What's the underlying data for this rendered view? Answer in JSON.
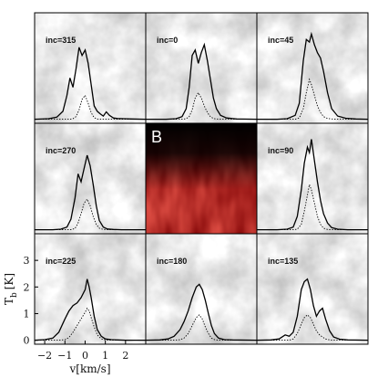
{
  "chart_data": {
    "type": "line",
    "description_free": true,
    "xlabel": "v[km/s]",
    "ylabel": "T_b [K]",
    "ylabel_main": "T",
    "ylabel_sub": "b",
    "ylabel_unit": "[K]",
    "xlim": [
      -2.5,
      3.0
    ],
    "ylim": [
      -0.15,
      4.0
    ],
    "xticks": [
      -2,
      -1,
      0,
      1,
      2
    ],
    "yticks": [
      0,
      1,
      2,
      3
    ],
    "center_panel_label": "B",
    "panels": [
      {
        "label": "inc=315",
        "x": [
          -2.5,
          -1.8,
          -1.4,
          -1.1,
          -0.9,
          -0.75,
          -0.6,
          -0.45,
          -0.3,
          -0.15,
          0,
          0.15,
          0.3,
          0.45,
          0.6,
          0.75,
          0.9,
          1.05,
          1.2,
          1.4,
          1.6,
          1.9,
          2.3,
          3.0
        ],
        "y": [
          0,
          0.02,
          0.08,
          0.3,
          0.9,
          1.55,
          1.2,
          1.9,
          2.7,
          2.4,
          2.6,
          2.1,
          1.3,
          0.5,
          0.3,
          0.2,
          0.12,
          0.28,
          0.15,
          0.05,
          0.03,
          0.02,
          0.01,
          0
        ],
        "dotted": [
          0,
          0,
          0,
          0,
          0,
          0,
          0.02,
          0.1,
          0.35,
          0.75,
          0.9,
          0.6,
          0.25,
          0.06,
          0.01,
          0,
          0,
          0,
          0,
          0,
          0,
          0,
          0,
          0
        ]
      },
      {
        "label": "inc=0",
        "x": [
          -2.5,
          -1.5,
          -1.0,
          -0.7,
          -0.5,
          -0.35,
          -0.2,
          -0.05,
          0.1,
          0.25,
          0.4,
          0.55,
          0.7,
          0.85,
          1.0,
          1.2,
          1.5,
          2.0,
          3.0
        ],
        "y": [
          0,
          0,
          0.02,
          0.1,
          0.4,
          1.2,
          2.4,
          2.6,
          2.1,
          2.5,
          2.8,
          2.2,
          1.5,
          0.8,
          0.4,
          0.15,
          0.05,
          0.01,
          0
        ],
        "dotted": [
          0,
          0,
          0,
          0,
          0.02,
          0.1,
          0.35,
          0.8,
          1.0,
          0.8,
          0.5,
          0.25,
          0.1,
          0.03,
          0.01,
          0,
          0,
          0,
          0
        ]
      },
      {
        "label": "inc=45",
        "x": [
          -2.5,
          -1.5,
          -1.0,
          -0.6,
          -0.4,
          -0.2,
          -0.05,
          0.1,
          0.2,
          0.35,
          0.5,
          0.65,
          0.8,
          1.0,
          1.2,
          1.5,
          1.9,
          2.4,
          3.0
        ],
        "y": [
          0,
          0,
          0.02,
          0.15,
          0.6,
          2.2,
          3.0,
          2.9,
          3.2,
          2.8,
          2.5,
          2.3,
          1.8,
          1.0,
          0.4,
          0.12,
          0.04,
          0.01,
          0
        ],
        "dotted": [
          0,
          0,
          0,
          0,
          0.05,
          0.4,
          1.0,
          1.5,
          1.3,
          0.9,
          0.5,
          0.25,
          0.1,
          0.03,
          0.01,
          0,
          0,
          0,
          0
        ]
      },
      {
        "label": "inc=270",
        "x": [
          -2.5,
          -1.6,
          -1.2,
          -0.9,
          -0.7,
          -0.5,
          -0.35,
          -0.2,
          -0.05,
          0.1,
          0.25,
          0.4,
          0.55,
          0.7,
          0.9,
          1.1,
          1.4,
          1.8,
          3.0
        ],
        "y": [
          0,
          0,
          0.02,
          0.1,
          0.4,
          1.2,
          2.1,
          1.8,
          2.3,
          2.8,
          2.4,
          1.7,
          0.9,
          0.35,
          0.1,
          0.03,
          0.01,
          0,
          0
        ],
        "dotted": [
          0,
          0,
          0,
          0,
          0,
          0.05,
          0.25,
          0.6,
          1.0,
          1.15,
          0.9,
          0.5,
          0.2,
          0.06,
          0.01,
          0,
          0,
          0,
          0
        ]
      },
      {
        "label": "inc=90",
        "x": [
          -2.5,
          -1.5,
          -1.0,
          -0.7,
          -0.5,
          -0.3,
          -0.15,
          0,
          0.1,
          0.2,
          0.35,
          0.5,
          0.65,
          0.8,
          1.0,
          1.2,
          1.5,
          2.0,
          3.0
        ],
        "y": [
          0,
          0,
          0.02,
          0.1,
          0.5,
          1.5,
          2.5,
          3.1,
          2.9,
          3.4,
          2.6,
          1.8,
          1.1,
          0.6,
          0.25,
          0.08,
          0.02,
          0,
          0
        ],
        "dotted": [
          0,
          0,
          0,
          0,
          0.02,
          0.2,
          0.7,
          1.3,
          1.7,
          1.5,
          1.0,
          0.5,
          0.2,
          0.06,
          0.01,
          0,
          0,
          0,
          0
        ]
      },
      {
        "label": "inc=225",
        "x": [
          -2.5,
          -2.0,
          -1.6,
          -1.3,
          -1.0,
          -0.8,
          -0.6,
          -0.4,
          -0.2,
          0,
          0.1,
          0.2,
          0.3,
          0.45,
          0.6,
          0.8,
          1.0,
          1.3,
          1.6,
          2.0,
          3.0
        ],
        "y": [
          0,
          0.02,
          0.08,
          0.3,
          0.8,
          1.1,
          1.3,
          1.4,
          1.6,
          1.9,
          2.3,
          2.0,
          1.6,
          0.9,
          0.4,
          0.15,
          0.05,
          0.02,
          0.01,
          0,
          0
        ],
        "dotted": [
          0,
          0,
          0,
          0,
          0.02,
          0.1,
          0.3,
          0.55,
          0.8,
          1.05,
          1.2,
          1.1,
          0.85,
          0.5,
          0.2,
          0.05,
          0.01,
          0,
          0,
          0,
          0
        ]
      },
      {
        "label": "inc=180",
        "x": [
          -2.5,
          -1.8,
          -1.4,
          -1.1,
          -0.8,
          -0.6,
          -0.4,
          -0.2,
          0,
          0.15,
          0.3,
          0.45,
          0.6,
          0.75,
          0.9,
          1.1,
          1.4,
          1.8,
          3.0
        ],
        "y": [
          0,
          0.01,
          0.05,
          0.15,
          0.4,
          0.7,
          1.1,
          1.6,
          2.0,
          2.1,
          1.9,
          1.5,
          1.0,
          0.55,
          0.25,
          0.08,
          0.02,
          0.01,
          0
        ],
        "dotted": [
          0,
          0,
          0,
          0,
          0.02,
          0.08,
          0.25,
          0.55,
          0.85,
          0.95,
          0.8,
          0.5,
          0.25,
          0.08,
          0.02,
          0,
          0,
          0,
          0
        ]
      },
      {
        "label": "inc=135",
        "x": [
          -2.5,
          -1.8,
          -1.4,
          -1.1,
          -0.9,
          -0.7,
          -0.5,
          -0.3,
          -0.15,
          0,
          0.15,
          0.3,
          0.45,
          0.6,
          0.75,
          0.9,
          1.1,
          1.3,
          1.6,
          2.0,
          3.0
        ],
        "y": [
          0,
          0.01,
          0.05,
          0.2,
          0.15,
          0.3,
          0.9,
          1.9,
          2.2,
          2.3,
          1.9,
          1.3,
          0.9,
          1.1,
          1.2,
          0.8,
          0.35,
          0.12,
          0.04,
          0.01,
          0
        ],
        "dotted": [
          0,
          0,
          0,
          0,
          0,
          0.05,
          0.25,
          0.6,
          0.85,
          0.95,
          0.85,
          0.6,
          0.35,
          0.2,
          0.12,
          0.05,
          0.01,
          0,
          0,
          0,
          0
        ]
      }
    ],
    "colors": {
      "line": "#000000",
      "panel_border": "#000000",
      "center_panel_dark": "#8b0c0c",
      "center_panel_black": "#0a0000"
    }
  }
}
